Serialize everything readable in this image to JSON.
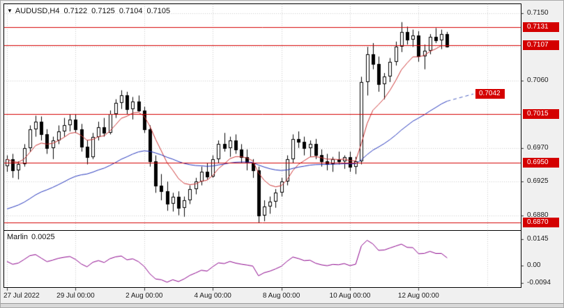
{
  "header": {
    "symbol_marker_icon": "▼",
    "symbol": "AUDUSD,H4",
    "ohlc": [
      "0.7122",
      "0.7125",
      "0.7104",
      "0.7105"
    ]
  },
  "indicator_header": {
    "name": "Marlin",
    "value": "0.0025"
  },
  "chart_data": {
    "type": "candlestick",
    "symbol": "AUDUSD",
    "timeframe": "H4",
    "price_axis": {
      "range": {
        "max": 0.7162,
        "min": 0.6862
      },
      "ticks": [
        {
          "label": "0.7150",
          "value": 0.715
        },
        {
          "label": "0.7060",
          "value": 0.706
        },
        {
          "label": "0.6970",
          "value": 0.697
        },
        {
          "label": "0.6925",
          "value": 0.6925
        },
        {
          "label": "0.6880",
          "value": 0.688
        }
      ],
      "grid_values": [
        0.715,
        0.7105,
        0.706,
        0.7015,
        0.697,
        0.6925,
        0.688
      ],
      "level_badges": [
        {
          "label": "0.7131",
          "value": 0.7131
        },
        {
          "label": "0.7107",
          "value": 0.7107
        },
        {
          "label": "0.7015",
          "value": 0.7015
        },
        {
          "label": "0.6950",
          "value": 0.695
        },
        {
          "label": "0.6870",
          "value": 0.687
        }
      ],
      "projection_badge": {
        "label": "0.7042",
        "value": 0.7042
      }
    },
    "horizontal_levels": [
      0.7131,
      0.7107,
      0.7015,
      0.695,
      0.687
    ],
    "time_axis": [
      {
        "label": "27 Jul 2022",
        "index": 0
      },
      {
        "label": "29 Jul 00:00",
        "index": 12
      },
      {
        "label": "2 Aug 00:00",
        "index": 24
      },
      {
        "label": "4 Aug 00:00",
        "index": 36
      },
      {
        "label": "8 Aug 00:00",
        "index": 48
      },
      {
        "label": "10 Aug 00:00",
        "index": 60
      },
      {
        "label": "12 Aug 00:00",
        "index": 72
      }
    ],
    "candles": [
      [
        0.6946,
        0.696,
        0.6938,
        0.6955
      ],
      [
        0.6955,
        0.6962,
        0.693,
        0.694
      ],
      [
        0.694,
        0.6952,
        0.6928,
        0.6948
      ],
      [
        0.6948,
        0.6975,
        0.6945,
        0.697
      ],
      [
        0.697,
        0.7,
        0.6965,
        0.6995
      ],
      [
        0.6995,
        0.7013,
        0.6985,
        0.7005
      ],
      [
        0.7005,
        0.7012,
        0.698,
        0.6988
      ],
      [
        0.6988,
        0.6995,
        0.6962,
        0.697
      ],
      [
        0.697,
        0.6985,
        0.6955,
        0.698
      ],
      [
        0.698,
        0.7,
        0.6975,
        0.6992
      ],
      [
        0.6992,
        0.701,
        0.6985,
        0.7
      ],
      [
        0.7,
        0.7015,
        0.6992,
        0.7008
      ],
      [
        0.7008,
        0.7015,
        0.699,
        0.6995
      ],
      [
        0.6995,
        0.7002,
        0.6965,
        0.6972
      ],
      [
        0.6972,
        0.698,
        0.6948,
        0.6958
      ],
      [
        0.6958,
        0.699,
        0.6955,
        0.6985
      ],
      [
        0.6985,
        0.7005,
        0.698,
        0.6998
      ],
      [
        0.6998,
        0.701,
        0.6985,
        0.699
      ],
      [
        0.699,
        0.702,
        0.6988,
        0.7015
      ],
      [
        0.7015,
        0.7035,
        0.701,
        0.703
      ],
      [
        0.703,
        0.7047,
        0.7022,
        0.704
      ],
      [
        0.704,
        0.7045,
        0.7015,
        0.7022
      ],
      [
        0.7022,
        0.7038,
        0.7008,
        0.7032
      ],
      [
        0.7032,
        0.704,
        0.7018,
        0.702
      ],
      [
        0.702,
        0.7025,
        0.699,
        0.6995
      ],
      [
        0.6995,
        0.7,
        0.6945,
        0.6952
      ],
      [
        0.6952,
        0.696,
        0.691,
        0.692
      ],
      [
        0.692,
        0.6935,
        0.69,
        0.6912
      ],
      [
        0.6912,
        0.6925,
        0.6886,
        0.6895
      ],
      [
        0.6895,
        0.691,
        0.6885,
        0.6905
      ],
      [
        0.6905,
        0.6912,
        0.688,
        0.689
      ],
      [
        0.689,
        0.6905,
        0.6878,
        0.69
      ],
      [
        0.69,
        0.692,
        0.6895,
        0.6915
      ],
      [
        0.6915,
        0.693,
        0.6908,
        0.6925
      ],
      [
        0.6925,
        0.6945,
        0.692,
        0.6938
      ],
      [
        0.6938,
        0.695,
        0.6928,
        0.6932
      ],
      [
        0.6932,
        0.696,
        0.693,
        0.6955
      ],
      [
        0.6955,
        0.698,
        0.695,
        0.6975
      ],
      [
        0.6975,
        0.699,
        0.6965,
        0.697
      ],
      [
        0.697,
        0.6985,
        0.6958,
        0.698
      ],
      [
        0.698,
        0.6988,
        0.6962,
        0.6968
      ],
      [
        0.6968,
        0.6975,
        0.695,
        0.6958
      ],
      [
        0.6958,
        0.6968,
        0.694,
        0.695
      ],
      [
        0.695,
        0.6955,
        0.693,
        0.694
      ],
      [
        0.694,
        0.6945,
        0.687,
        0.688
      ],
      [
        0.688,
        0.69,
        0.6872,
        0.6892
      ],
      [
        0.6892,
        0.6905,
        0.6882,
        0.6898
      ],
      [
        0.6898,
        0.6915,
        0.689,
        0.691
      ],
      [
        0.691,
        0.693,
        0.6905,
        0.6925
      ],
      [
        0.6925,
        0.696,
        0.692,
        0.6955
      ],
      [
        0.6955,
        0.6988,
        0.695,
        0.6982
      ],
      [
        0.6982,
        0.6992,
        0.697,
        0.6978
      ],
      [
        0.6978,
        0.6985,
        0.696,
        0.697
      ],
      [
        0.697,
        0.698,
        0.6958,
        0.6975
      ],
      [
        0.6975,
        0.6982,
        0.6955,
        0.696
      ],
      [
        0.696,
        0.6968,
        0.6945,
        0.6952
      ],
      [
        0.6952,
        0.6962,
        0.694,
        0.6948
      ],
      [
        0.6948,
        0.6958,
        0.6938,
        0.6955
      ],
      [
        0.6955,
        0.6965,
        0.6948,
        0.6952
      ],
      [
        0.6952,
        0.696,
        0.6942,
        0.6958
      ],
      [
        0.6958,
        0.6965,
        0.6938,
        0.6945
      ],
      [
        0.6945,
        0.6958,
        0.6935,
        0.6952
      ],
      [
        0.6952,
        0.7065,
        0.6948,
        0.7058
      ],
      [
        0.7058,
        0.7105,
        0.704,
        0.7095
      ],
      [
        0.7095,
        0.711,
        0.7075,
        0.7082
      ],
      [
        0.7082,
        0.7092,
        0.7045,
        0.7055
      ],
      [
        0.7055,
        0.707,
        0.7035,
        0.7065
      ],
      [
        0.7065,
        0.709,
        0.7058,
        0.7085
      ],
      [
        0.7085,
        0.7112,
        0.708,
        0.7105
      ],
      [
        0.7105,
        0.7138,
        0.7098,
        0.7125
      ],
      [
        0.7125,
        0.7132,
        0.7108,
        0.7115
      ],
      [
        0.7115,
        0.7128,
        0.7105,
        0.712
      ],
      [
        0.712,
        0.7126,
        0.7085,
        0.7092
      ],
      [
        0.7092,
        0.7108,
        0.7075,
        0.71
      ],
      [
        0.71,
        0.7122,
        0.7095,
        0.7118
      ],
      [
        0.7118,
        0.713,
        0.711,
        0.7114
      ],
      [
        0.7114,
        0.7128,
        0.7102,
        0.7122
      ],
      [
        0.7122,
        0.7125,
        0.7104,
        0.7105
      ]
    ],
    "overlays": {
      "fast_ma": {
        "type": "ema",
        "period": 8,
        "color": "#cc3333"
      },
      "slow_ma": {
        "type": "ema",
        "period": 40,
        "seed": 0.6885,
        "color": "#2233bb"
      },
      "projection": {
        "target": 0.7042,
        "style": "dashed",
        "color": "#4a5fc0"
      }
    },
    "indicator": {
      "name": "Marlin",
      "type": "line",
      "color": "#8b008b",
      "basis": {
        "type": "close_minus_sma",
        "period": 21,
        "seed": 0.693
      },
      "axis": {
        "ticks": [
          {
            "label": "0.0145",
            "value": 0.0145
          },
          {
            "label": "0.00",
            "value": 0
          },
          {
            "label": "-0.0094",
            "value": -0.0094
          }
        ]
      }
    }
  },
  "colors": {
    "level_line": "#d40000",
    "badge_bg": "#d40000",
    "badge_text": "#ffffff",
    "bull_body": "#ffffff",
    "bear_body": "#000000",
    "outline": "#000000",
    "grid": "#cccccc",
    "axis_text": "#1a1a1a"
  }
}
